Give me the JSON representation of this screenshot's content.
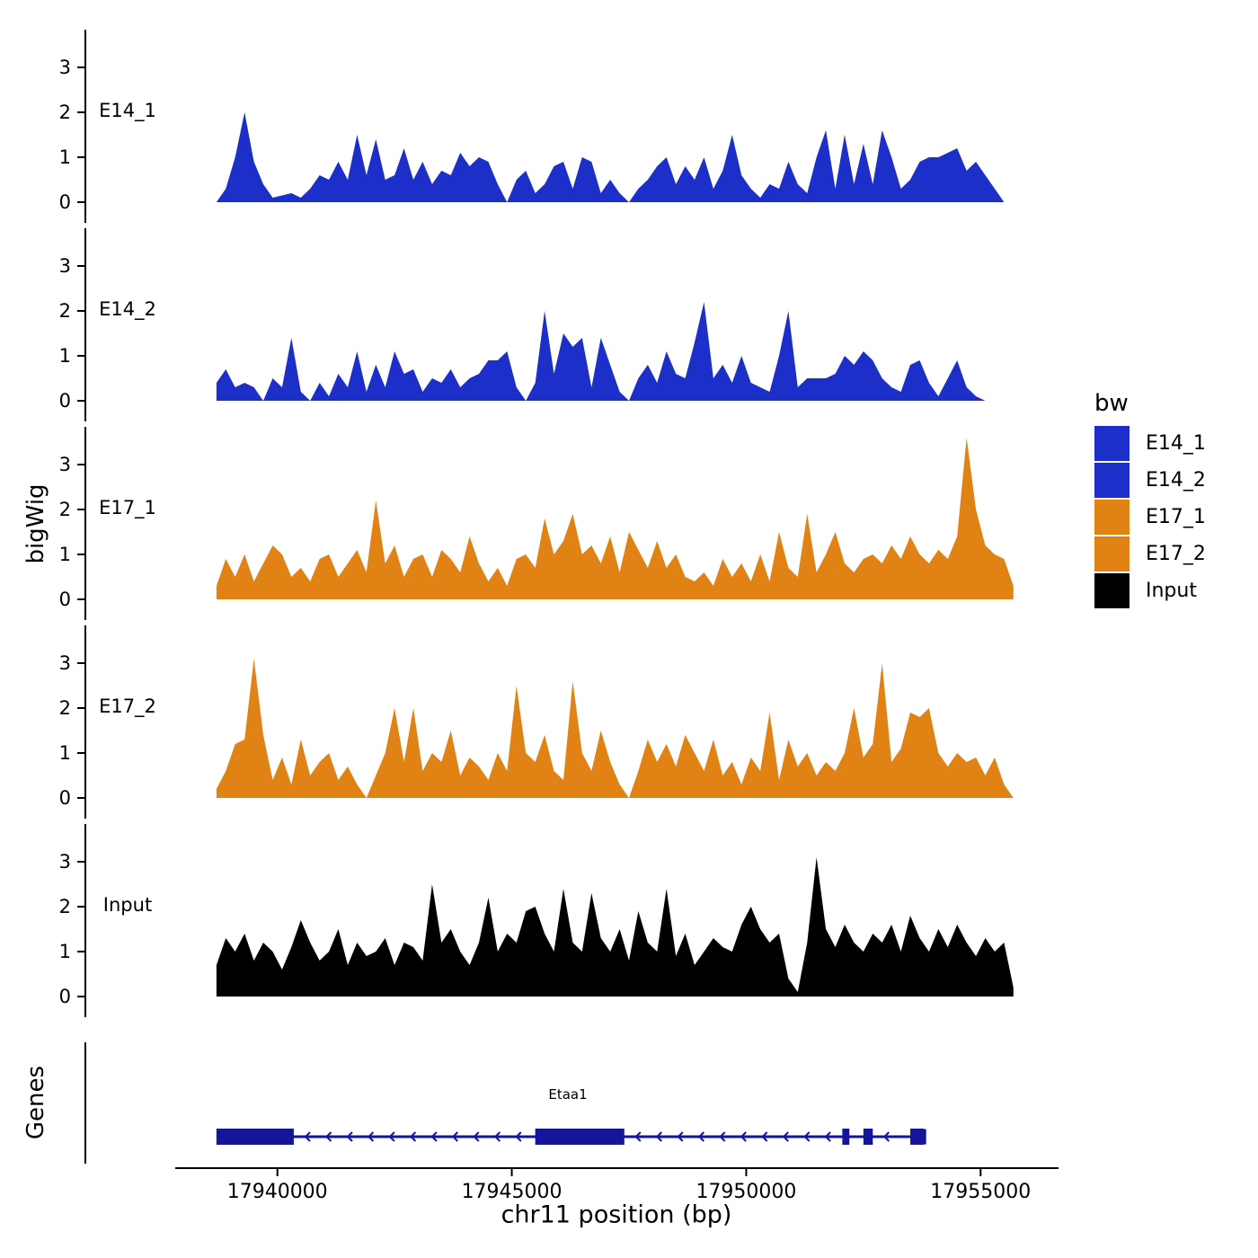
{
  "figure": {
    "y_axis_title": "bigWig",
    "genes_axis_title": "Genes",
    "x_axis_title": "chr11 position (bp)",
    "legend_title": "bw"
  },
  "chart_data": {
    "type": "area",
    "title": "",
    "xlabel": "chr11 position (bp)",
    "ylabel": "bigWig",
    "x_domain": [
      17936000,
      17956700
    ],
    "x_ticks": [
      17940000,
      17945000,
      17950000,
      17955000
    ],
    "y_ticks": [
      0,
      1,
      2,
      3
    ],
    "y_max": 3.7,
    "grid": false,
    "legend_position": "right",
    "signal_start": 17938700,
    "signal_step": 200,
    "tracks": [
      {
        "name": "E14_1",
        "color": "#1C2FC9",
        "values": [
          0,
          0.3,
          1,
          2,
          0.9,
          0.4,
          0.1,
          0.15,
          0.2,
          0.1,
          0.3,
          0.6,
          0.5,
          0.9,
          0.5,
          1.5,
          0.6,
          1.4,
          0.5,
          0.6,
          1.2,
          0.5,
          0.9,
          0.4,
          0.7,
          0.6,
          1.1,
          0.8,
          1,
          0.9,
          0.4,
          0,
          0.5,
          0.7,
          0.2,
          0.4,
          0.8,
          0.9,
          0.3,
          1,
          0.9,
          0.2,
          0.5,
          0.2,
          0,
          0.3,
          0.5,
          0.8,
          1,
          0.4,
          0.8,
          0.5,
          1,
          0.3,
          0.7,
          1.5,
          0.6,
          0.3,
          0.1,
          0.4,
          0.3,
          0.9,
          0.4,
          0.2,
          1,
          1.6,
          0.3,
          1.5,
          0.4,
          1.3,
          0.4,
          1.6,
          1,
          0.3,
          0.5,
          0.9,
          1,
          1,
          1.1,
          1.2,
          0.7,
          0.9,
          0.6,
          0.3,
          0,
          0
        ]
      },
      {
        "name": "E14_2",
        "color": "#1C2FC9",
        "values": [
          0.4,
          0.7,
          0.3,
          0.4,
          0.3,
          0,
          0.5,
          0.3,
          1.4,
          0.2,
          0,
          0.4,
          0.1,
          0.6,
          0.3,
          1.1,
          0.2,
          0.8,
          0.3,
          1.1,
          0.6,
          0.7,
          0.2,
          0.5,
          0.4,
          0.7,
          0.3,
          0.5,
          0.6,
          0.9,
          0.9,
          1.1,
          0.3,
          0,
          0.4,
          2,
          0.6,
          1.5,
          1.2,
          1.4,
          0.3,
          1.4,
          0.8,
          0.2,
          0,
          0.5,
          0.8,
          0.4,
          1.1,
          0.6,
          0.5,
          1.3,
          2.2,
          0.5,
          0.8,
          0.4,
          1,
          0.4,
          0.3,
          0.2,
          1,
          2,
          0.3,
          0.5,
          0.5,
          0.5,
          0.6,
          1,
          0.8,
          1.1,
          0.9,
          0.5,
          0.3,
          0.2,
          0.8,
          0.9,
          0.4,
          0.1,
          0.5,
          0.9,
          0.3,
          0.1,
          0,
          0,
          0,
          0
        ]
      },
      {
        "name": "E17_1",
        "color": "#E08214",
        "values": [
          0.3,
          0.9,
          0.5,
          1,
          0.4,
          0.8,
          1.2,
          1,
          0.5,
          0.7,
          0.4,
          0.9,
          1,
          0.5,
          0.8,
          1.1,
          0.6,
          2.2,
          0.8,
          1.2,
          0.5,
          0.9,
          1,
          0.5,
          1.1,
          0.9,
          0.6,
          1.4,
          0.8,
          0.4,
          0.7,
          0.3,
          0.9,
          1,
          0.7,
          1.8,
          1,
          1.3,
          1.9,
          1,
          1.2,
          0.8,
          1.4,
          0.6,
          1.5,
          1.1,
          0.7,
          1.3,
          0.7,
          1,
          0.5,
          0.4,
          0.6,
          0.3,
          0.9,
          0.5,
          0.8,
          0.4,
          1,
          0.4,
          1.5,
          0.7,
          0.5,
          1.9,
          0.6,
          1,
          1.5,
          0.8,
          0.6,
          0.9,
          1,
          0.8,
          1.2,
          0.9,
          1.4,
          1,
          0.8,
          1.1,
          0.9,
          1.4,
          3.6,
          2,
          1.2,
          1,
          0.9,
          0.3
        ]
      },
      {
        "name": "E17_2",
        "color": "#E08214",
        "values": [
          0.2,
          0.6,
          1.2,
          1.3,
          3.1,
          1.4,
          0.4,
          0.9,
          0.3,
          1.3,
          0.5,
          0.8,
          1,
          0.4,
          0.7,
          0.3,
          0,
          0.5,
          1,
          2,
          0.8,
          2,
          0.6,
          1,
          0.8,
          1.5,
          0.5,
          0.9,
          0.7,
          0.4,
          1,
          0.6,
          2.5,
          1,
          0.8,
          1.4,
          0.6,
          0.4,
          2.6,
          1,
          0.6,
          1.5,
          0.8,
          0.3,
          0,
          0.6,
          1.3,
          0.8,
          1.2,
          0.7,
          1.4,
          1,
          0.6,
          1.3,
          0.5,
          0.8,
          0.3,
          0.9,
          0.6,
          1.9,
          0.4,
          1.3,
          0.7,
          1,
          0.5,
          0.8,
          0.6,
          1,
          2,
          0.9,
          1.2,
          3,
          0.8,
          1.1,
          1.9,
          1.8,
          2,
          1,
          0.7,
          1,
          0.8,
          0.9,
          0.5,
          0.9,
          0.3,
          0
        ]
      },
      {
        "name": "Input",
        "color": "#000000",
        "values": [
          0.7,
          1.3,
          1,
          1.4,
          0.8,
          1.2,
          1,
          0.6,
          1.1,
          1.7,
          1.2,
          0.8,
          1,
          1.5,
          0.7,
          1.2,
          0.9,
          1,
          1.3,
          0.7,
          1.2,
          1.1,
          0.8,
          2.5,
          1.2,
          1.5,
          1,
          0.7,
          1.2,
          2.2,
          1,
          1.4,
          1.2,
          1.9,
          2,
          1.4,
          1,
          2.4,
          1.2,
          1,
          2.3,
          1.3,
          1,
          1.5,
          0.8,
          1.9,
          1.2,
          1,
          2.4,
          0.9,
          1.4,
          0.7,
          1,
          1.3,
          1.1,
          1,
          1.6,
          2,
          1.5,
          1.2,
          1.4,
          0.4,
          0.1,
          1.2,
          3.1,
          1.5,
          1.1,
          1.6,
          1.2,
          1,
          1.4,
          1.2,
          1.6,
          1,
          1.8,
          1.3,
          1,
          1.5,
          1.1,
          1.6,
          1.2,
          0.9,
          1.3,
          1,
          1.2,
          0.2
        ]
      }
    ],
    "legend": {
      "title": "bw",
      "entries": [
        {
          "label": "E14_1",
          "color": "#1C2FC9"
        },
        {
          "label": "E14_2",
          "color": "#1C2FC9"
        },
        {
          "label": "E17_1",
          "color": "#E08214"
        },
        {
          "label": "E17_2",
          "color": "#E08214"
        },
        {
          "label": "Input",
          "color": "#000000"
        }
      ]
    },
    "gene_track": {
      "panel_label": "Genes",
      "gene": {
        "name": "Etaa1",
        "strand": "-",
        "chromosome": "chr11",
        "start": 17938700,
        "end": 17953800,
        "exons": [
          [
            17938700,
            17940350
          ],
          [
            17945500,
            17947400
          ],
          [
            17952050,
            17952200
          ],
          [
            17952500,
            17952700
          ],
          [
            17953500,
            17953800
          ]
        ],
        "color": "#14149C"
      }
    }
  }
}
